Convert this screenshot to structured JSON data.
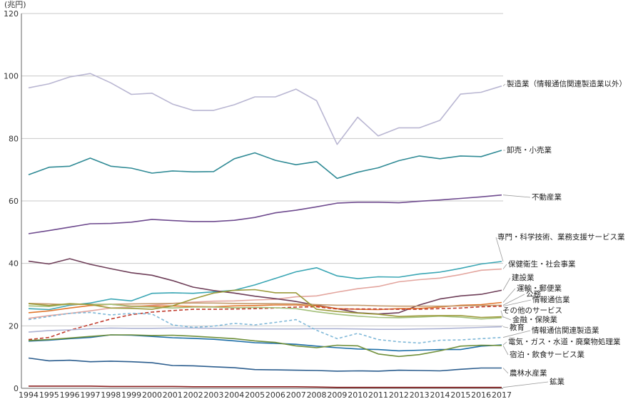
{
  "chart_data": {
    "type": "line",
    "unit_label": "(兆円)",
    "x": [
      1994,
      1995,
      1996,
      1997,
      1998,
      1999,
      2000,
      2001,
      2002,
      2003,
      2004,
      2005,
      2006,
      2007,
      2008,
      2009,
      2010,
      2011,
      2012,
      2013,
      2014,
      2015,
      2016,
      2017
    ],
    "ylim": [
      0,
      120
    ],
    "yticks": [
      0,
      20,
      40,
      60,
      80,
      100,
      120
    ],
    "grid": true,
    "legend": "direct labels at line ends (right)",
    "series": [
      {
        "name": "製造業（情報通信関連製造業以外）",
        "color": "#b9b6d2",
        "dash": "",
        "values": [
          96.2,
          97.5,
          99.7,
          100.8,
          97.8,
          94.1,
          94.5,
          91.0,
          89.0,
          89.0,
          90.8,
          93.3,
          93.3,
          95.8,
          92.1,
          78.1,
          86.8,
          80.8,
          83.4,
          83.4,
          85.8,
          94.2,
          94.8,
          96.8
        ]
      },
      {
        "name": "卸売・小売業",
        "color": "#2f8a95",
        "dash": "",
        "values": [
          68.4,
          70.8,
          71.1,
          73.7,
          71.1,
          70.5,
          68.9,
          69.6,
          69.3,
          69.4,
          73.5,
          75.4,
          73.0,
          71.6,
          72.6,
          67.2,
          69.2,
          70.6,
          72.9,
          74.4,
          73.5,
          74.4,
          74.2,
          76.2
        ]
      },
      {
        "name": "不動産業",
        "color": "#6e4a8e",
        "dash": "",
        "values": [
          49.5,
          50.5,
          51.6,
          52.7,
          52.8,
          53.2,
          54.1,
          53.7,
          53.4,
          53.4,
          53.8,
          54.7,
          56.2,
          57.0,
          58.1,
          59.3,
          59.6,
          59.6,
          59.4,
          59.9,
          60.3,
          60.8,
          61.3,
          61.9
        ]
      },
      {
        "name": "専門・科学技術、業務支援サービス業",
        "color": "#3aa6b4",
        "dash": "",
        "values": [
          25.5,
          25.2,
          26.6,
          27.3,
          28.6,
          28.0,
          30.4,
          30.6,
          30.4,
          30.9,
          31.4,
          33.1,
          35.2,
          37.3,
          38.6,
          36.0,
          35.1,
          35.7,
          35.6,
          36.6,
          37.2,
          38.4,
          39.8,
          40.6
        ]
      },
      {
        "name": "保健衛生・社会事業",
        "color": "#e3a59e",
        "dash": "",
        "values": [
          22.4,
          23.3,
          24.0,
          24.8,
          25.7,
          26.0,
          26.6,
          27.2,
          27.6,
          27.9,
          28.0,
          28.3,
          28.5,
          29.3,
          29.6,
          30.8,
          31.9,
          32.6,
          34.1,
          34.8,
          35.3,
          36.4,
          37.8,
          38.2
        ]
      },
      {
        "name": "建設業",
        "color": "#6e3e58",
        "dash": "",
        "values": [
          40.7,
          39.8,
          41.5,
          39.7,
          38.3,
          37.0,
          36.2,
          34.5,
          32.4,
          31.3,
          30.5,
          29.5,
          28.7,
          27.8,
          26.6,
          25.5,
          24.2,
          23.8,
          24.2,
          26.7,
          28.6,
          29.6,
          30.1,
          31.4
        ]
      },
      {
        "name": "運輸・郵便業",
        "color": "#e2762c",
        "dash": "",
        "values": [
          24.2,
          24.8,
          25.7,
          26.5,
          26.9,
          26.3,
          26.3,
          26.4,
          26.2,
          26.1,
          26.4,
          26.5,
          26.7,
          26.7,
          26.4,
          25.5,
          25.3,
          25.2,
          25.5,
          25.6,
          26.0,
          26.6,
          26.8,
          27.5
        ]
      },
      {
        "name": "公務",
        "color": "#c49a6c",
        "dash": "",
        "values": [
          27.2,
          27.0,
          26.8,
          26.9,
          26.9,
          27.0,
          27.1,
          27.2,
          27.3,
          27.3,
          27.2,
          27.1,
          27.1,
          27.0,
          26.8,
          26.6,
          26.6,
          26.4,
          26.3,
          26.3,
          26.3,
          26.4,
          26.5,
          26.6
        ]
      },
      {
        "name": "情報通信業",
        "color": "#c0392b",
        "dash": "5 3",
        "values": [
          15.6,
          16.3,
          18.6,
          20.4,
          22.2,
          23.6,
          24.4,
          24.9,
          25.3,
          25.3,
          25.4,
          25.5,
          25.7,
          26.0,
          26.1,
          25.4,
          25.4,
          25.4,
          25.3,
          25.3,
          25.5,
          25.7,
          26.1,
          26.3
        ]
      },
      {
        "name": "その他のサービス",
        "color": "#a3c07a",
        "dash": "",
        "values": [
          26.4,
          26.2,
          27.0,
          26.8,
          26.9,
          26.2,
          26.0,
          25.7,
          26.0,
          26.0,
          25.8,
          25.9,
          25.8,
          25.5,
          24.5,
          23.7,
          23.1,
          22.7,
          22.6,
          22.8,
          23.1,
          22.8,
          22.2,
          22.6
        ]
      },
      {
        "name": "金融・保険業",
        "color": "#9c9a3a",
        "dash": "",
        "values": [
          27.1,
          26.5,
          27.1,
          26.8,
          25.7,
          25.6,
          25.3,
          26.4,
          28.6,
          30.5,
          31.4,
          31.6,
          30.6,
          30.6,
          25.3,
          24.6,
          24.1,
          23.7,
          23.0,
          23.2,
          23.3,
          23.3,
          22.7,
          22.9
        ]
      },
      {
        "name": "教育",
        "color": "#aeb4d4",
        "dash": "",
        "values": [
          18.0,
          18.5,
          18.7,
          19.1,
          19.3,
          19.2,
          19.2,
          19.3,
          19.3,
          19.2,
          19.1,
          19.0,
          19.0,
          19.0,
          19.1,
          19.1,
          19.0,
          18.9,
          18.9,
          19.0,
          19.1,
          19.3,
          19.5,
          19.7
        ]
      },
      {
        "name": "情報通信関連製造業",
        "color": "#7fb8d8",
        "dash": "4 3",
        "values": [
          22.0,
          23.0,
          24.0,
          24.3,
          23.5,
          24.0,
          23.8,
          20.3,
          19.5,
          19.9,
          20.8,
          20.3,
          21.1,
          22.0,
          18.6,
          15.9,
          17.6,
          15.6,
          14.9,
          14.5,
          15.4,
          15.5,
          15.9,
          16.3
        ]
      },
      {
        "name": "電気・ガス・水道・廃棄物処理業",
        "color": "#1f6fa8",
        "dash": "",
        "values": [
          15.1,
          15.4,
          15.9,
          16.3,
          17.1,
          17.0,
          16.6,
          16.2,
          16.0,
          15.7,
          15.2,
          14.6,
          14.4,
          14.1,
          13.5,
          13.0,
          12.6,
          12.4,
          12.0,
          12.2,
          12.4,
          12.4,
          13.5,
          13.9
        ]
      },
      {
        "name": "宿泊・飲食サービス業",
        "color": "#6f8f3a",
        "dash": "",
        "values": [
          15.3,
          15.6,
          16.1,
          16.6,
          17.1,
          17.1,
          16.9,
          17.0,
          16.7,
          16.3,
          15.9,
          15.2,
          14.7,
          13.6,
          13.0,
          13.8,
          13.6,
          11.0,
          10.2,
          10.8,
          12.0,
          13.5,
          13.8,
          13.7
        ]
      },
      {
        "name": "農林水産業",
        "color": "#2b5d8e",
        "dash": "",
        "values": [
          9.7,
          8.8,
          9.0,
          8.5,
          8.7,
          8.5,
          8.2,
          7.3,
          7.2,
          6.9,
          6.6,
          6.0,
          5.9,
          5.8,
          5.7,
          5.5,
          5.6,
          5.5,
          5.8,
          5.7,
          5.6,
          6.1,
          6.5,
          6.5
        ]
      },
      {
        "name": "鉱業",
        "color": "#8b2020",
        "dash": "",
        "values": [
          0.7,
          0.7,
          0.7,
          0.7,
          0.6,
          0.6,
          0.6,
          0.6,
          0.5,
          0.5,
          0.5,
          0.5,
          0.5,
          0.5,
          0.4,
          0.3,
          0.3,
          0.3,
          0.3,
          0.3,
          0.3,
          0.3,
          0.3,
          0.3
        ]
      }
    ]
  }
}
